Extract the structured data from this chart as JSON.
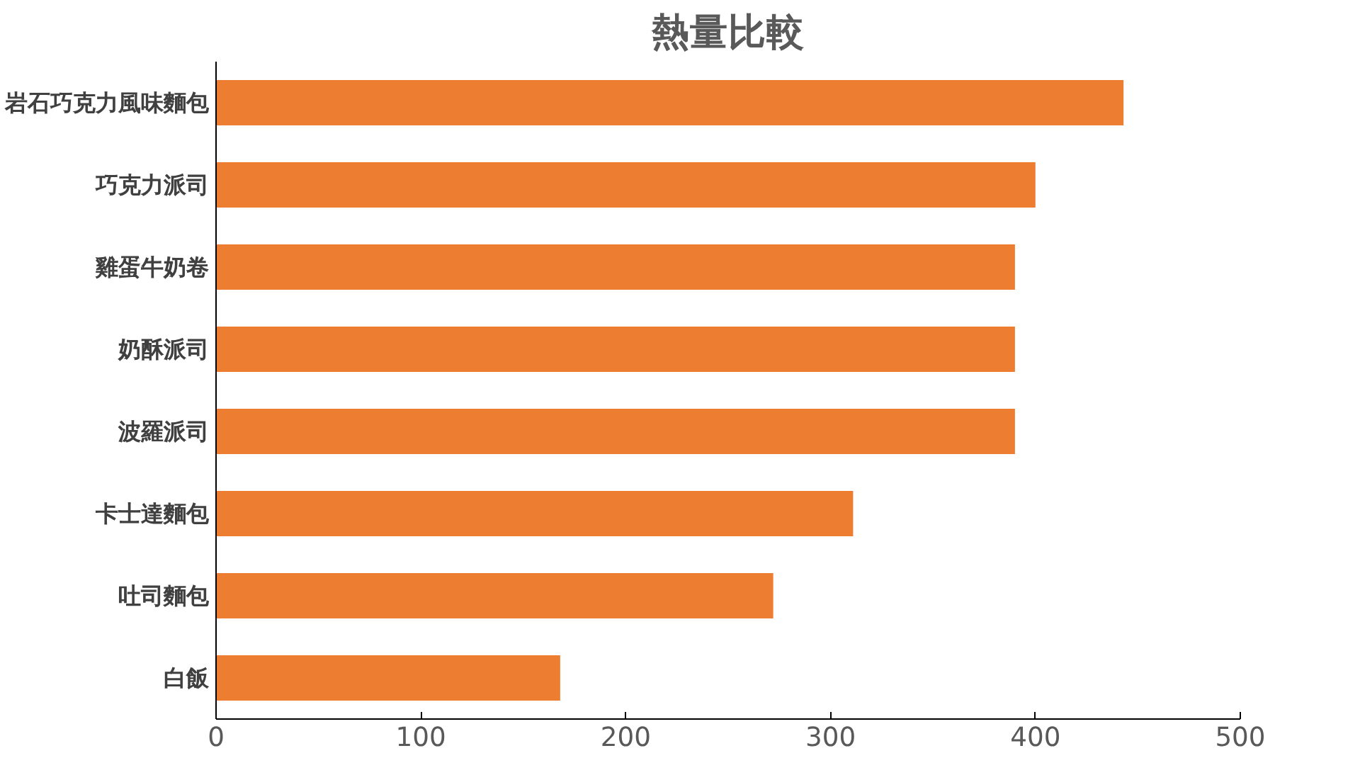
{
  "chart_data": {
    "type": "bar",
    "orientation": "horizontal",
    "title": "熱量比較",
    "categories": [
      "岩石巧克力風味麵包",
      "巧克力派司",
      "雞蛋牛奶卷",
      "奶酥派司",
      "波羅派司",
      "卡士達麵包",
      "吐司麵包",
      "白飯"
    ],
    "values": [
      443,
      400,
      390,
      390,
      390,
      311,
      272,
      168
    ],
    "color": "#ed7d31",
    "xlim": [
      0,
      500
    ],
    "xticks": [
      0,
      100,
      200,
      300,
      400,
      500
    ],
    "grid": false
  }
}
